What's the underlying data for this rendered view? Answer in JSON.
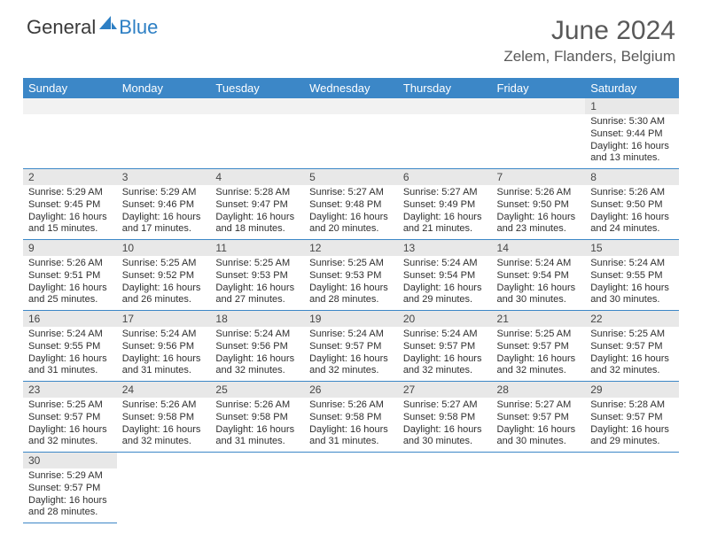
{
  "brand": {
    "part1": "General",
    "part2": "Blue"
  },
  "title": "June 2024",
  "location": "Zelem, Flanders, Belgium",
  "colors": {
    "header_bg": "#3c87c7",
    "header_text": "#ffffff",
    "daynum_bg": "#e8e8e8",
    "border": "#3c87c7",
    "brand_gray": "#3a3a3a",
    "brand_blue": "#2d7fc4",
    "title_gray": "#595959"
  },
  "weekdays": [
    "Sunday",
    "Monday",
    "Tuesday",
    "Wednesday",
    "Thursday",
    "Friday",
    "Saturday"
  ],
  "weeks": [
    [
      null,
      null,
      null,
      null,
      null,
      null,
      {
        "d": "1",
        "sr": "5:30 AM",
        "ss": "9:44 PM",
        "dl": "16 hours and 13 minutes."
      }
    ],
    [
      {
        "d": "2",
        "sr": "5:29 AM",
        "ss": "9:45 PM",
        "dl": "16 hours and 15 minutes."
      },
      {
        "d": "3",
        "sr": "5:29 AM",
        "ss": "9:46 PM",
        "dl": "16 hours and 17 minutes."
      },
      {
        "d": "4",
        "sr": "5:28 AM",
        "ss": "9:47 PM",
        "dl": "16 hours and 18 minutes."
      },
      {
        "d": "5",
        "sr": "5:27 AM",
        "ss": "9:48 PM",
        "dl": "16 hours and 20 minutes."
      },
      {
        "d": "6",
        "sr": "5:27 AM",
        "ss": "9:49 PM",
        "dl": "16 hours and 21 minutes."
      },
      {
        "d": "7",
        "sr": "5:26 AM",
        "ss": "9:50 PM",
        "dl": "16 hours and 23 minutes."
      },
      {
        "d": "8",
        "sr": "5:26 AM",
        "ss": "9:50 PM",
        "dl": "16 hours and 24 minutes."
      }
    ],
    [
      {
        "d": "9",
        "sr": "5:26 AM",
        "ss": "9:51 PM",
        "dl": "16 hours and 25 minutes."
      },
      {
        "d": "10",
        "sr": "5:25 AM",
        "ss": "9:52 PM",
        "dl": "16 hours and 26 minutes."
      },
      {
        "d": "11",
        "sr": "5:25 AM",
        "ss": "9:53 PM",
        "dl": "16 hours and 27 minutes."
      },
      {
        "d": "12",
        "sr": "5:25 AM",
        "ss": "9:53 PM",
        "dl": "16 hours and 28 minutes."
      },
      {
        "d": "13",
        "sr": "5:24 AM",
        "ss": "9:54 PM",
        "dl": "16 hours and 29 minutes."
      },
      {
        "d": "14",
        "sr": "5:24 AM",
        "ss": "9:54 PM",
        "dl": "16 hours and 30 minutes."
      },
      {
        "d": "15",
        "sr": "5:24 AM",
        "ss": "9:55 PM",
        "dl": "16 hours and 30 minutes."
      }
    ],
    [
      {
        "d": "16",
        "sr": "5:24 AM",
        "ss": "9:55 PM",
        "dl": "16 hours and 31 minutes."
      },
      {
        "d": "17",
        "sr": "5:24 AM",
        "ss": "9:56 PM",
        "dl": "16 hours and 31 minutes."
      },
      {
        "d": "18",
        "sr": "5:24 AM",
        "ss": "9:56 PM",
        "dl": "16 hours and 32 minutes."
      },
      {
        "d": "19",
        "sr": "5:24 AM",
        "ss": "9:57 PM",
        "dl": "16 hours and 32 minutes."
      },
      {
        "d": "20",
        "sr": "5:24 AM",
        "ss": "9:57 PM",
        "dl": "16 hours and 32 minutes."
      },
      {
        "d": "21",
        "sr": "5:25 AM",
        "ss": "9:57 PM",
        "dl": "16 hours and 32 minutes."
      },
      {
        "d": "22",
        "sr": "5:25 AM",
        "ss": "9:57 PM",
        "dl": "16 hours and 32 minutes."
      }
    ],
    [
      {
        "d": "23",
        "sr": "5:25 AM",
        "ss": "9:57 PM",
        "dl": "16 hours and 32 minutes."
      },
      {
        "d": "24",
        "sr": "5:26 AM",
        "ss": "9:58 PM",
        "dl": "16 hours and 32 minutes."
      },
      {
        "d": "25",
        "sr": "5:26 AM",
        "ss": "9:58 PM",
        "dl": "16 hours and 31 minutes."
      },
      {
        "d": "26",
        "sr": "5:26 AM",
        "ss": "9:58 PM",
        "dl": "16 hours and 31 minutes."
      },
      {
        "d": "27",
        "sr": "5:27 AM",
        "ss": "9:58 PM",
        "dl": "16 hours and 30 minutes."
      },
      {
        "d": "28",
        "sr": "5:27 AM",
        "ss": "9:57 PM",
        "dl": "16 hours and 30 minutes."
      },
      {
        "d": "29",
        "sr": "5:28 AM",
        "ss": "9:57 PM",
        "dl": "16 hours and 29 minutes."
      }
    ],
    [
      {
        "d": "30",
        "sr": "5:29 AM",
        "ss": "9:57 PM",
        "dl": "16 hours and 28 minutes."
      },
      null,
      null,
      null,
      null,
      null,
      null
    ]
  ],
  "labels": {
    "sunrise": "Sunrise: ",
    "sunset": "Sunset: ",
    "daylight": "Daylight: "
  }
}
